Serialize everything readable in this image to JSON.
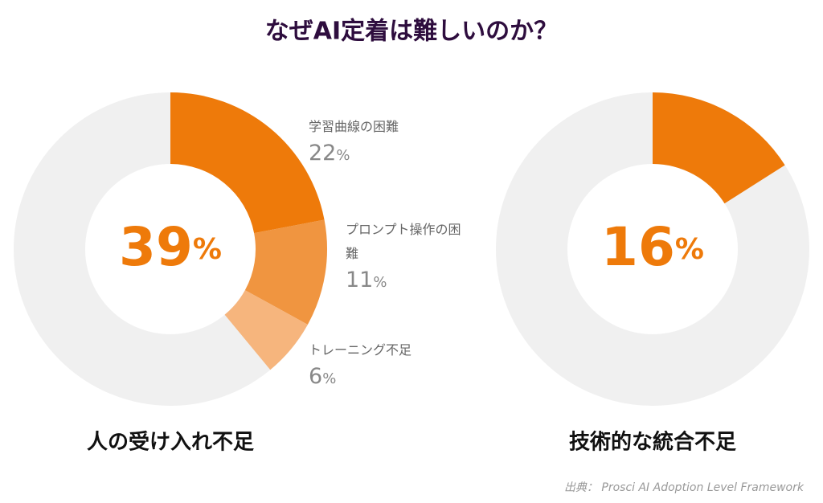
{
  "title": "なぜAI定着は難しいのか？",
  "source": "出典： Prosci AI Adoption Level Framework",
  "chart_data": [
    {
      "type": "pie",
      "title": "人の受け入れ不足",
      "total": 39,
      "unit": "%",
      "categories": [
        "学習曲線の困難",
        "プロンプト操作の困難",
        "トレーニング不足"
      ],
      "values": [
        22,
        11,
        6
      ],
      "colors": [
        "#ee7a0a",
        "#f09540",
        "#f6b57d"
      ]
    },
    {
      "type": "pie",
      "title": "技術的な統合不足",
      "total": 16,
      "unit": "%",
      "values": [
        16
      ],
      "colors": [
        "#ee7a0a"
      ]
    }
  ]
}
